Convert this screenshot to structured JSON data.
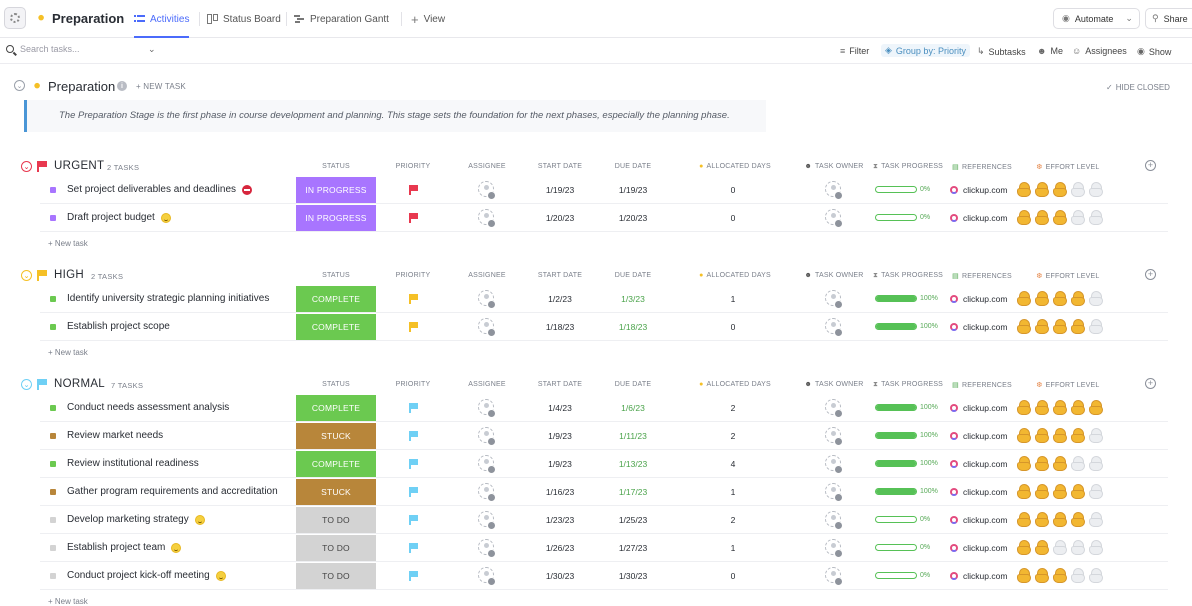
{
  "header": {
    "space_title": "Preparation",
    "tabs": [
      {
        "label": "Activities",
        "active": true
      },
      {
        "label": "Status Board",
        "active": false
      },
      {
        "label": "Preparation Gantt",
        "active": false
      },
      {
        "label": "View",
        "active": false
      }
    ],
    "automate_label": "Automate",
    "share_label": "Share"
  },
  "filterbar": {
    "search_placeholder": "Search tasks...",
    "filter_label": "Filter",
    "group_label": "Group by: Priority",
    "subtasks_label": "Subtasks",
    "me_label": "Me",
    "assignees_label": "Assignees",
    "show_label": "Show"
  },
  "list": {
    "title": "Preparation",
    "new_task_label": "+ NEW TASK",
    "hide_closed_label": "HIDE CLOSED",
    "description": "The Preparation Stage is the first phase in course development and planning. This stage sets the foundation for the next phases, especially the planning phase."
  },
  "columns": {
    "status": "STATUS",
    "priority": "PRIORITY",
    "assignee": "ASSIGNEE",
    "start_date": "START DATE",
    "due_date": "DUE DATE",
    "allocated_days": "ALLOCATED DAYS",
    "task_owner": "TASK OWNER",
    "task_progress": "TASK PROGRESS",
    "references": "REFERENCES",
    "effort_level": "EFFORT LEVEL"
  },
  "status_colors": {
    "IN PROGRESS": "#a875ff",
    "COMPLETE": "#6bc950",
    "STUCK": "#b8863a",
    "TO DO": "#d3d3d3"
  },
  "groups": [
    {
      "name": "URGENT",
      "count_label": "2 TASKS",
      "color": "#e8384f",
      "new_task": "+ New task",
      "tasks": [
        {
          "name": "Set project deliverables and deadlines",
          "badge": "blocked",
          "status": "IN PROGRESS",
          "prio_color": "#e8384f",
          "start": "1/19/23",
          "due": "1/19/23",
          "due_green": false,
          "days": "0",
          "progress": 0,
          "progress_label": "0%",
          "reference": "clickup.com",
          "effort": 3
        },
        {
          "name": "Draft project budget",
          "badge": "smile",
          "status": "IN PROGRESS",
          "prio_color": "#e8384f",
          "start": "1/20/23",
          "due": "1/20/23",
          "due_green": false,
          "days": "0",
          "progress": 0,
          "progress_label": "0%",
          "reference": "clickup.com",
          "effort": 3
        }
      ]
    },
    {
      "name": "HIGH",
      "count_label": "2 TASKS",
      "color": "#f5c026",
      "new_task": "+ New task",
      "tasks": [
        {
          "name": "Identify university strategic planning initiatives",
          "badge": "",
          "status": "COMPLETE",
          "prio_color": "#f5c026",
          "start": "1/2/23",
          "due": "1/3/23",
          "due_green": true,
          "days": "1",
          "progress": 100,
          "progress_label": "100%",
          "reference": "clickup.com",
          "effort": 4
        },
        {
          "name": "Establish project scope",
          "badge": "",
          "status": "COMPLETE",
          "prio_color": "#f5c026",
          "start": "1/18/23",
          "due": "1/18/23",
          "due_green": true,
          "days": "0",
          "progress": 100,
          "progress_label": "100%",
          "reference": "clickup.com",
          "effort": 4
        }
      ]
    },
    {
      "name": "NORMAL",
      "count_label": "7 TASKS",
      "color": "#6fd0f5",
      "new_task": "+ New task",
      "tasks": [
        {
          "name": "Conduct needs assessment analysis",
          "badge": "",
          "status": "COMPLETE",
          "prio_color": "#6fd0f5",
          "start": "1/4/23",
          "due": "1/6/23",
          "due_green": true,
          "days": "2",
          "progress": 100,
          "progress_label": "100%",
          "reference": "clickup.com",
          "effort": 5
        },
        {
          "name": "Review market needs",
          "badge": "",
          "status": "STUCK",
          "prio_color": "#6fd0f5",
          "start": "1/9/23",
          "due": "1/11/23",
          "due_green": true,
          "days": "2",
          "progress": 100,
          "progress_label": "100%",
          "reference": "clickup.com",
          "effort": 4
        },
        {
          "name": "Review institutional readiness",
          "badge": "",
          "status": "COMPLETE",
          "prio_color": "#6fd0f5",
          "start": "1/9/23",
          "due": "1/13/23",
          "due_green": true,
          "days": "4",
          "progress": 100,
          "progress_label": "100%",
          "reference": "clickup.com",
          "effort": 3
        },
        {
          "name": "Gather program requirements and accreditation",
          "badge": "",
          "status": "STUCK",
          "prio_color": "#6fd0f5",
          "start": "1/16/23",
          "due": "1/17/23",
          "due_green": true,
          "days": "1",
          "progress": 100,
          "progress_label": "100%",
          "reference": "clickup.com",
          "effort": 4
        },
        {
          "name": "Develop marketing strategy",
          "badge": "smile",
          "status": "TO DO",
          "prio_color": "#6fd0f5",
          "start": "1/23/23",
          "due": "1/25/23",
          "due_green": false,
          "days": "2",
          "progress": 0,
          "progress_label": "0%",
          "reference": "clickup.com",
          "effort": 4
        },
        {
          "name": "Establish project team",
          "badge": "smile",
          "status": "TO DO",
          "prio_color": "#6fd0f5",
          "start": "1/26/23",
          "due": "1/27/23",
          "due_green": false,
          "days": "1",
          "progress": 0,
          "progress_label": "0%",
          "reference": "clickup.com",
          "effort": 2
        },
        {
          "name": "Conduct project kick-off meeting",
          "badge": "smile",
          "status": "TO DO",
          "prio_color": "#6fd0f5",
          "start": "1/30/23",
          "due": "1/30/23",
          "due_green": false,
          "days": "0",
          "progress": 0,
          "progress_label": "0%",
          "reference": "clickup.com",
          "effort": 3
        }
      ]
    }
  ]
}
